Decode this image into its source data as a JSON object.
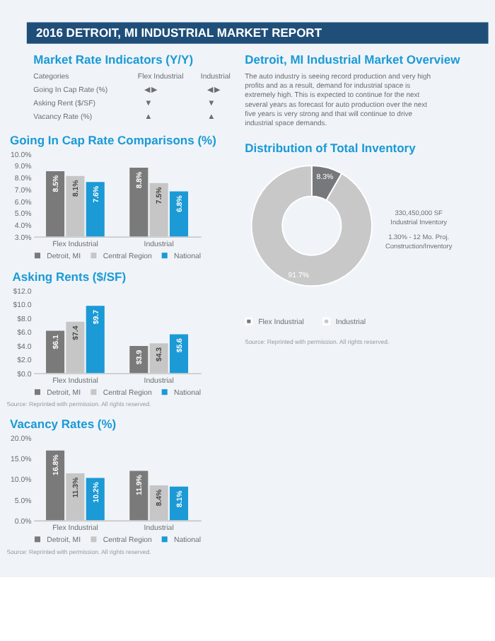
{
  "chart_data": [
    {
      "type": "other",
      "title": "2016 DETROIT, MI INDUSTRIAL MARKET REPORT"
    },
    {
      "type": "other",
      "title": "Market Rate Indicators (Y/Y)",
      "ylabel": "Categories",
      "categories": [
        "Flex Industrial",
        "Industrial"
      ],
      "y_categories": [
        "Going In Cap Rate (%)",
        "Asking Rent ($/SF)",
        "Vacancy Rate (%)"
      ],
      "cell_labels": [
        [
          "◀▶",
          "◀▶"
        ],
        [
          "▼",
          "▼"
        ],
        [
          "▲",
          "▲"
        ]
      ]
    },
    {
      "type": "bar",
      "title": "Going In Cap Rate Comparisons (%)",
      "categories": [
        "Flex Industrial",
        "Industrial"
      ],
      "legend": "bottom",
      "ylim": [
        3,
        10
      ],
      "yticks": [
        {
          "value": 3,
          "label": "3.0%"
        },
        {
          "value": 4,
          "label": "4.0%"
        },
        {
          "value": 5,
          "label": "5.0%"
        },
        {
          "value": 6,
          "label": "6.0%"
        },
        {
          "value": 7,
          "label": "7.0%"
        },
        {
          "value": 8,
          "label": "8.0%"
        },
        {
          "value": 9,
          "label": "9.0%"
        },
        {
          "value": 10,
          "label": "10.0%"
        }
      ],
      "series": [
        {
          "name": "Detroit, MI",
          "color": "#7a7a7a",
          "values": [
            8.5,
            8.8
          ],
          "value_labels": [
            "8.5%",
            "8.8%"
          ]
        },
        {
          "name": "Central Region",
          "color": "#c6c6c6",
          "values": [
            8.1,
            7.5
          ],
          "value_labels": [
            "8.1%",
            "7.5%"
          ]
        },
        {
          "name": "National",
          "color": "#1b9ad6",
          "values": [
            7.6,
            6.8
          ],
          "value_labels": [
            "7.6%",
            "6.8%"
          ]
        }
      ]
    },
    {
      "type": "bar",
      "title": "Asking Rents ($/SF)",
      "categories": [
        "Flex Industrial",
        "Industrial"
      ],
      "legend": "bottom",
      "ylim": [
        0,
        12
      ],
      "yticks": [
        {
          "value": 0,
          "label": "$0.0"
        },
        {
          "value": 2,
          "label": "$2.0"
        },
        {
          "value": 4,
          "label": "$4.0"
        },
        {
          "value": 6,
          "label": "$6.0"
        },
        {
          "value": 8,
          "label": "$8.0"
        },
        {
          "value": 10,
          "label": "$10.0"
        },
        {
          "value": 12,
          "label": "$12.0"
        }
      ],
      "annotations": [
        "Source: Reprinted with permission. All rights reserved."
      ],
      "series": [
        {
          "name": "Detroit, MI",
          "color": "#7a7a7a",
          "values": [
            6.1,
            3.9
          ],
          "value_labels": [
            "$6.1",
            "$3.9"
          ]
        },
        {
          "name": "Central Region",
          "color": "#c6c6c6",
          "values": [
            7.4,
            4.3
          ],
          "value_labels": [
            "$7.4",
            "$4.3"
          ]
        },
        {
          "name": "National",
          "color": "#1b9ad6",
          "values": [
            9.7,
            5.6
          ],
          "value_labels": [
            "$9.7",
            "$5.6"
          ]
        }
      ]
    },
    {
      "type": "bar",
      "title": "Vacancy Rates (%)",
      "categories": [
        "Flex Industrial",
        "Industrial"
      ],
      "legend": "bottom",
      "ylim": [
        0,
        20
      ],
      "yticks": [
        {
          "value": 0,
          "label": "0.0%"
        },
        {
          "value": 5,
          "label": "5.0%"
        },
        {
          "value": 10,
          "label": "10.0%"
        },
        {
          "value": 15,
          "label": "15.0%"
        },
        {
          "value": 20,
          "label": "20.0%"
        }
      ],
      "annotations": [
        "Source: Reprinted with permission. All rights reserved."
      ],
      "series": [
        {
          "name": "Detroit, MI",
          "color": "#7a7a7a",
          "values": [
            16.8,
            11.9
          ],
          "value_labels": [
            "16.8%",
            "11.9%"
          ]
        },
        {
          "name": "Central Region",
          "color": "#c6c6c6",
          "values": [
            11.3,
            8.4
          ],
          "value_labels": [
            "11.3%",
            "8.4%"
          ]
        },
        {
          "name": "National",
          "color": "#1b9ad6",
          "values": [
            10.2,
            8.1
          ],
          "value_labels": [
            "10.2%",
            "8.1%"
          ]
        }
      ]
    },
    {
      "type": "other",
      "title": "Detroit, MI Industrial Market Overview",
      "annotations": [
        "The auto industry is seeing record production and very high profits and as a result, demand for industrial space is extremely high. This is expected to continue for the next several years as forecast for auto production over the next five years is very strong and that will continue to drive industrial space demands."
      ]
    },
    {
      "type": "donut",
      "title": "Distribution of Total Inventory",
      "categories": [
        "Flex Industrial",
        "Industrial"
      ],
      "values": [
        8.3,
        91.7
      ],
      "colors": [
        "#77787b",
        "#c8c8c8"
      ],
      "value_labels": [
        "8.3%",
        "91.7%"
      ],
      "legend": "bottom",
      "annotations": [
        "330,450,000 SF",
        "Industrial Inventory",
        "1.30% - 12 Mo. Proj. Construction/Inventory",
        "Source: Reprinted with permission. All rights reserved."
      ]
    }
  ]
}
